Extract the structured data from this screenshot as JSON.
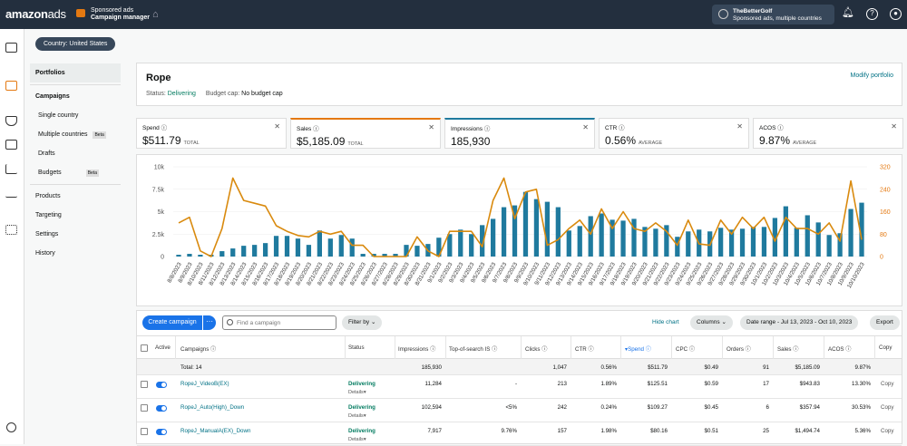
{
  "topbar": {
    "logo_main": "amazon",
    "logo_sub": "ads",
    "product_top": "Sponsored ads",
    "product_bottom": "Campaign manager",
    "account_name": "TheBetterGolf",
    "account_sub": "Sponsored ads, multiple countries"
  },
  "country_selector": "Country: United States",
  "left_nav": {
    "portfolios": "Portfolios",
    "campaigns": "Campaigns",
    "single_country": "Single country",
    "multiple_countries": "Multiple countries",
    "beta1": "Beta",
    "drafts": "Drafts",
    "budgets": "Budgets",
    "beta2": "Beta",
    "products": "Products",
    "targeting": "Targeting",
    "settings": "Settings",
    "history": "History"
  },
  "portfolio": {
    "title": "Rope",
    "status_label": "Status:",
    "status_value": "Delivering",
    "budget_label": "Budget cap:",
    "budget_value": "No budget cap",
    "modify": "Modify portfolio"
  },
  "metrics": [
    {
      "label": "Spend",
      "value": "$511.79",
      "suffix": "TOTAL",
      "accent": ""
    },
    {
      "label": "Sales",
      "value": "$5,185.09",
      "suffix": "TOTAL",
      "accent": "#e47911"
    },
    {
      "label": "Impressions",
      "value": "185,930",
      "suffix": "",
      "accent": "#1f7a9e"
    },
    {
      "label": "CTR",
      "value": "0.56%",
      "suffix": "AVERAGE",
      "accent": ""
    },
    {
      "label": "ACOS",
      "value": "9.87%",
      "suffix": "AVERAGE",
      "accent": ""
    }
  ],
  "chart_data": {
    "type": "bar",
    "categories": [
      "8/8/2023",
      "8/9/2023",
      "8/10/2023",
      "8/11/2023",
      "8/12/2023",
      "8/13/2023",
      "8/14/2023",
      "8/15/2023",
      "8/16/2023",
      "8/17/2023",
      "8/18/2023",
      "8/19/2023",
      "8/20/2023",
      "8/21/2023",
      "8/22/2023",
      "8/23/2023",
      "8/24/2023",
      "8/25/2023",
      "8/26/2023",
      "8/27/2023",
      "8/28/2023",
      "8/29/2023",
      "8/30/2023",
      "8/31/2023",
      "9/1/2023",
      "9/2/2023",
      "9/3/2023",
      "9/4/2023",
      "9/5/2023",
      "9/6/2023",
      "9/7/2023",
      "9/8/2023",
      "9/9/2023",
      "9/10/2023",
      "9/11/2023",
      "9/12/2023",
      "9/13/2023",
      "9/14/2023",
      "9/15/2023",
      "9/16/2023",
      "9/17/2023",
      "9/18/2023",
      "9/19/2023",
      "9/20/2023",
      "9/21/2023",
      "9/22/2023",
      "9/23/2023",
      "9/24/2023",
      "9/25/2023",
      "9/26/2023",
      "9/27/2023",
      "9/28/2023",
      "9/29/2023",
      "9/30/2023",
      "10/1/2023",
      "10/2/2023",
      "10/3/2023",
      "10/4/2023",
      "10/5/2023",
      "10/6/2023",
      "10/7/2023",
      "10/8/2023",
      "10/9/2023",
      "10/10/2023"
    ],
    "left_axis": {
      "ticks": [
        "0",
        "2.5k",
        "5k",
        "7.5k",
        "10k"
      ],
      "max": 10000,
      "color": "#555"
    },
    "right_axis": {
      "ticks": [
        "0",
        "80",
        "160",
        "240",
        "320"
      ],
      "max": 320,
      "color": "#e47911"
    },
    "series": [
      {
        "name": "Impressions",
        "kind": "bar",
        "axis": "left",
        "color": "#1f7a9e",
        "values": [
          200,
          300,
          200,
          200,
          600,
          900,
          1200,
          1300,
          1500,
          2300,
          2300,
          2000,
          1300,
          2900,
          2000,
          2400,
          2000,
          300,
          300,
          300,
          300,
          1300,
          1200,
          1400,
          2100,
          2500,
          3000,
          2500,
          3500,
          4200,
          5500,
          5700,
          7200,
          6400,
          6100,
          5500,
          2900,
          3400,
          4500,
          4800,
          4100,
          4000,
          4200,
          3300,
          3100,
          3500,
          2200,
          2800,
          3000,
          2800,
          3200,
          3000,
          3100,
          3300,
          3300,
          4300,
          5600,
          3200,
          4600,
          3800,
          2400,
          2600,
          5300,
          6000
        ]
      },
      {
        "name": "Sales",
        "kind": "line",
        "axis": "right",
        "color": "#d98a0e",
        "values": [
          120,
          140,
          20,
          0,
          100,
          280,
          200,
          190,
          180,
          110,
          90,
          75,
          70,
          90,
          80,
          90,
          40,
          40,
          0,
          0,
          0,
          0,
          70,
          20,
          0,
          90,
          90,
          90,
          35,
          200,
          280,
          135,
          230,
          240,
          40,
          60,
          100,
          130,
          80,
          170,
          100,
          160,
          100,
          90,
          120,
          90,
          40,
          130,
          45,
          40,
          130,
          80,
          140,
          100,
          140,
          55,
          140,
          100,
          100,
          80,
          120,
          55,
          270,
          60
        ]
      }
    ]
  },
  "toolbar": {
    "create": "Create campaign",
    "more": "···",
    "search_placeholder": "Find a campaign",
    "filter": "Filter by",
    "hide_chart": "Hide chart",
    "columns": "Columns",
    "date_range": "Date range - Jul 13, 2023 - Oct 10, 2023",
    "export": "Export"
  },
  "table": {
    "headers": {
      "active": "Active",
      "campaigns": "Campaigns",
      "status": "Status",
      "impressions": "Impressions",
      "top_of_search": "Top-of-search IS",
      "clicks": "Clicks",
      "ctr": "CTR",
      "spend": "Spend",
      "cpc": "CPC",
      "orders": "Orders",
      "sales": "Sales",
      "acos": "ACOS",
      "copy": "Copy"
    },
    "total": {
      "label": "Total: 14",
      "impressions": "185,930",
      "clicks": "1,047",
      "ctr": "0.56%",
      "spend": "$511.79",
      "cpc": "$0.49",
      "orders": "91",
      "sales": "$5,185.09",
      "acos": "9.87%"
    },
    "rows": [
      {
        "name": "RopeJ_VideoB(EX)",
        "status": "Delivering",
        "details": "Details",
        "impressions": "11,284",
        "tos": "-",
        "clicks": "213",
        "ctr": "1.89%",
        "spend": "$125.51",
        "cpc": "$0.59",
        "orders": "17",
        "sales": "$943.83",
        "acos": "13.30%",
        "copy": "Copy"
      },
      {
        "name": "RopeJ_Auto(High)_Down",
        "status": "Delivering",
        "details": "Details",
        "impressions": "102,594",
        "tos": "<5%",
        "clicks": "242",
        "ctr": "0.24%",
        "spend": "$109.27",
        "cpc": "$0.45",
        "orders": "6",
        "sales": "$357.94",
        "acos": "30.53%",
        "copy": "Copy"
      },
      {
        "name": "RopeJ_ManualA(EX)_Down",
        "status": "Delivering",
        "details": "Details",
        "impressions": "7,917",
        "tos": "9.76%",
        "clicks": "157",
        "ctr": "1.98%",
        "spend": "$80.16",
        "cpc": "$0.51",
        "orders": "25",
        "sales": "$1,494.74",
        "acos": "5.36%",
        "copy": "Copy"
      }
    ]
  }
}
